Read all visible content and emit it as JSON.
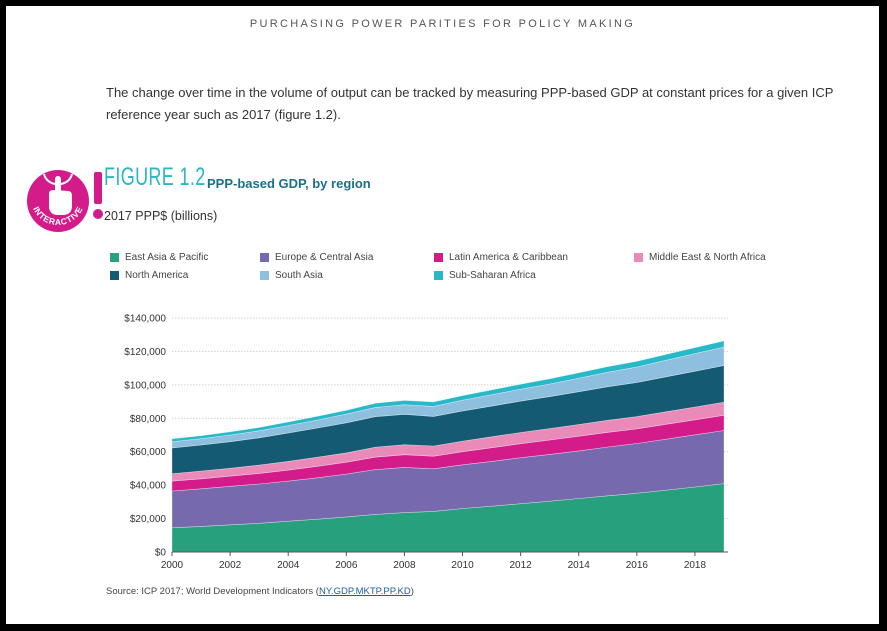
{
  "header": {
    "running_head": "PURCHASING POWER PARITIES FOR POLICY MAKING"
  },
  "intro_text": "The change over time in the volume of output can be tracked by measuring PPP-based GDP at constant prices for a given ICP reference year such as 2017 (figure 1.2).",
  "badge": {
    "label": "INTERACTIVE",
    "icon": "hand-pointer-icon"
  },
  "figure": {
    "number": "FIGURE 1.2",
    "title": "PPP-based GDP, by region",
    "subtitle": "2017 PPP$ (billions)"
  },
  "source": {
    "prefix": "Source: ICP 2017; World Development Indicators (",
    "link": "NY.GDP.MKTP.PP.KD",
    "suffix": ")"
  },
  "chart_data": {
    "type": "area",
    "stacked": true,
    "x": [
      2000,
      2001,
      2002,
      2003,
      2004,
      2005,
      2006,
      2007,
      2008,
      2009,
      2010,
      2011,
      2012,
      2013,
      2014,
      2015,
      2016,
      2017,
      2018,
      2019
    ],
    "xticks": [
      2000,
      2002,
      2004,
      2006,
      2008,
      2010,
      2012,
      2014,
      2016,
      2018
    ],
    "xlim": [
      2000,
      2019
    ],
    "ylim": [
      0,
      140000
    ],
    "yticks": [
      0,
      20000,
      40000,
      60000,
      80000,
      100000,
      120000,
      140000
    ],
    "ytick_labels": [
      "$0",
      "$20,000",
      "$40,000",
      "$60,000",
      "$80,000",
      "$100,000",
      "$120,000",
      "$140,000"
    ],
    "grid": true,
    "legend_position": "top",
    "series": [
      {
        "name": "East Asia & Pacific",
        "color": "#27a07e",
        "values": [
          14500,
          15300,
          16300,
          17200,
          18400,
          19600,
          21000,
          22500,
          23600,
          24300,
          26000,
          27400,
          28900,
          30400,
          32000,
          33600,
          35200,
          37000,
          38900,
          40900
        ]
      },
      {
        "name": "Europe & Central Asia",
        "color": "#7769ad",
        "values": [
          22000,
          22500,
          23000,
          23500,
          24000,
          24800,
          25600,
          26800,
          27000,
          25500,
          26200,
          26800,
          27500,
          28000,
          28500,
          29200,
          29700,
          30500,
          31200,
          31800
        ]
      },
      {
        "name": "Latin America & Caribbean",
        "color": "#d41b8a",
        "values": [
          5900,
          6000,
          6100,
          6300,
          6600,
          6900,
          7100,
          7500,
          7600,
          7500,
          7800,
          8200,
          8400,
          8600,
          8800,
          8800,
          8800,
          8900,
          9000,
          9100
        ]
      },
      {
        "name": "Middle East & North Africa",
        "color": "#e98ab9",
        "values": [
          4400,
          4600,
          4700,
          5000,
          5200,
          5400,
          5600,
          5900,
          6000,
          6100,
          6300,
          6500,
          6700,
          6800,
          7000,
          7200,
          7300,
          7500,
          7600,
          7800
        ]
      },
      {
        "name": "North America",
        "color": "#155a73",
        "values": [
          15500,
          15600,
          15900,
          16300,
          17000,
          17500,
          18000,
          18300,
          18200,
          17700,
          18100,
          18400,
          18800,
          19200,
          19600,
          20100,
          20400,
          20900,
          21500,
          22000
        ]
      },
      {
        "name": "South Asia",
        "color": "#8fbfdf",
        "values": [
          3700,
          3800,
          4000,
          4200,
          4500,
          4800,
          5200,
          5500,
          5700,
          6000,
          6400,
          6800,
          7100,
          7500,
          8100,
          8700,
          9300,
          9900,
          10500,
          11000
        ]
      },
      {
        "name": "Sub-Saharan Africa",
        "color": "#27b9c8",
        "values": [
          1700,
          1800,
          1900,
          2000,
          2100,
          2200,
          2300,
          2500,
          2600,
          2700,
          2800,
          2900,
          3000,
          3100,
          3200,
          3300,
          3400,
          3500,
          3600,
          3700
        ]
      }
    ]
  }
}
